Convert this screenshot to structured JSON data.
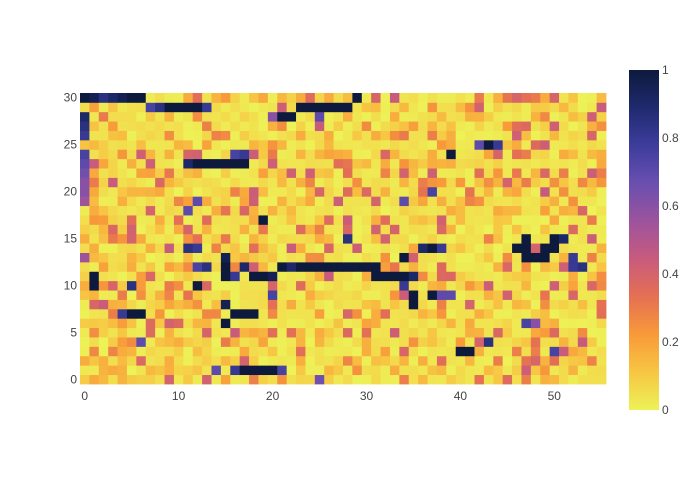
{
  "chart_data": {
    "type": "heatmap",
    "title": "",
    "xlabel": "",
    "ylabel": "",
    "x_range": [
      -0.5,
      55.5
    ],
    "y_range": [
      -0.5,
      30.5
    ],
    "n_cols": 56,
    "n_rows": 31,
    "x_ticks": [
      0,
      10,
      20,
      30,
      40,
      50
    ],
    "y_ticks": [
      0,
      5,
      10,
      15,
      20,
      25,
      30
    ],
    "colorbar": {
      "min": 0,
      "max": 1,
      "ticks": [
        0,
        0.2,
        0.4,
        0.6,
        0.8,
        1
      ],
      "tick_labels": [
        "0",
        "0.2",
        "0.4",
        "0.6",
        "0.8",
        "1"
      ],
      "colorscale": [
        "#edf257",
        "#f7c643",
        "#f89a3a",
        "#e57052",
        "#c85b7d",
        "#9c539d",
        "#6a4fb0",
        "#3d3d9c",
        "#1f2a6e",
        "#0d1a3d"
      ]
    },
    "hot_cells": [
      {
        "x": 0,
        "y": 30,
        "v": 1
      },
      {
        "x": 1,
        "y": 30,
        "v": 0.95
      },
      {
        "x": 2,
        "y": 30,
        "v": 0.85
      },
      {
        "x": 3,
        "y": 30,
        "v": 0.9
      },
      {
        "x": 4,
        "y": 30,
        "v": 0.95
      },
      {
        "x": 5,
        "y": 30,
        "v": 1
      },
      {
        "x": 6,
        "y": 30,
        "v": 1
      },
      {
        "x": 29,
        "y": 30,
        "v": 1
      },
      {
        "x": 7,
        "y": 29,
        "v": 0.75
      },
      {
        "x": 8,
        "y": 29,
        "v": 0.85
      },
      {
        "x": 9,
        "y": 29,
        "v": 1
      },
      {
        "x": 10,
        "y": 29,
        "v": 1
      },
      {
        "x": 11,
        "y": 29,
        "v": 1
      },
      {
        "x": 12,
        "y": 29,
        "v": 1
      },
      {
        "x": 13,
        "y": 29,
        "v": 0.8
      },
      {
        "x": 23,
        "y": 29,
        "v": 1
      },
      {
        "x": 24,
        "y": 29,
        "v": 1
      },
      {
        "x": 25,
        "y": 29,
        "v": 1
      },
      {
        "x": 26,
        "y": 29,
        "v": 1
      },
      {
        "x": 27,
        "y": 29,
        "v": 1
      },
      {
        "x": 28,
        "y": 29,
        "v": 1
      },
      {
        "x": 21,
        "y": 28,
        "v": 1
      },
      {
        "x": 22,
        "y": 28,
        "v": 1
      },
      {
        "x": 20,
        "y": 28,
        "v": 0.6
      },
      {
        "x": 25,
        "y": 28,
        "v": 0.7
      },
      {
        "x": 0,
        "y": 28,
        "v": 0.9
      },
      {
        "x": 0,
        "y": 27,
        "v": 0.85
      },
      {
        "x": 0,
        "y": 26,
        "v": 0.8
      },
      {
        "x": 43,
        "y": 25,
        "v": 1
      },
      {
        "x": 44,
        "y": 25,
        "v": 0.8
      },
      {
        "x": 42,
        "y": 25,
        "v": 0.7
      },
      {
        "x": 39,
        "y": 24,
        "v": 1
      },
      {
        "x": 16,
        "y": 24,
        "v": 0.75
      },
      {
        "x": 17,
        "y": 24,
        "v": 0.8
      },
      {
        "x": 11,
        "y": 23,
        "v": 0.9
      },
      {
        "x": 12,
        "y": 23,
        "v": 1
      },
      {
        "x": 13,
        "y": 23,
        "v": 1
      },
      {
        "x": 14,
        "y": 23,
        "v": 1
      },
      {
        "x": 15,
        "y": 23,
        "v": 1
      },
      {
        "x": 16,
        "y": 23,
        "v": 1
      },
      {
        "x": 17,
        "y": 23,
        "v": 1
      },
      {
        "x": 37,
        "y": 20,
        "v": 0.75
      },
      {
        "x": 34,
        "y": 19,
        "v": 0.7
      },
      {
        "x": 12,
        "y": 19,
        "v": 0.7
      },
      {
        "x": 11,
        "y": 18,
        "v": 0.7
      },
      {
        "x": 19,
        "y": 17,
        "v": 1
      },
      {
        "x": 28,
        "y": 15,
        "v": 0.85
      },
      {
        "x": 11,
        "y": 14,
        "v": 0.85
      },
      {
        "x": 12,
        "y": 14,
        "v": 0.8
      },
      {
        "x": 36,
        "y": 14,
        "v": 0.9
      },
      {
        "x": 37,
        "y": 14,
        "v": 1
      },
      {
        "x": 38,
        "y": 14,
        "v": 0.8
      },
      {
        "x": 47,
        "y": 15,
        "v": 1
      },
      {
        "x": 50,
        "y": 15,
        "v": 1
      },
      {
        "x": 51,
        "y": 15,
        "v": 0.9
      },
      {
        "x": 46,
        "y": 14,
        "v": 1
      },
      {
        "x": 47,
        "y": 14,
        "v": 1
      },
      {
        "x": 49,
        "y": 14,
        "v": 1
      },
      {
        "x": 50,
        "y": 14,
        "v": 1
      },
      {
        "x": 47,
        "y": 13,
        "v": 1
      },
      {
        "x": 48,
        "y": 13,
        "v": 1
      },
      {
        "x": 49,
        "y": 13,
        "v": 1
      },
      {
        "x": 52,
        "y": 13,
        "v": 0.8
      },
      {
        "x": 0,
        "y": 13,
        "v": 0.55
      },
      {
        "x": 15,
        "y": 13,
        "v": 0.95
      },
      {
        "x": 34,
        "y": 13,
        "v": 1
      },
      {
        "x": 12,
        "y": 12,
        "v": 0.75
      },
      {
        "x": 13,
        "y": 12,
        "v": 0.85
      },
      {
        "x": 15,
        "y": 12,
        "v": 1
      },
      {
        "x": 17,
        "y": 12,
        "v": 0.9
      },
      {
        "x": 21,
        "y": 12,
        "v": 1
      },
      {
        "x": 22,
        "y": 12,
        "v": 0.9
      },
      {
        "x": 23,
        "y": 12,
        "v": 1
      },
      {
        "x": 24,
        "y": 12,
        "v": 1
      },
      {
        "x": 25,
        "y": 12,
        "v": 1
      },
      {
        "x": 26,
        "y": 12,
        "v": 1
      },
      {
        "x": 27,
        "y": 12,
        "v": 1
      },
      {
        "x": 28,
        "y": 12,
        "v": 1
      },
      {
        "x": 29,
        "y": 12,
        "v": 1
      },
      {
        "x": 30,
        "y": 12,
        "v": 1
      },
      {
        "x": 31,
        "y": 12,
        "v": 1
      },
      {
        "x": 52,
        "y": 12,
        "v": 0.8
      },
      {
        "x": 53,
        "y": 12,
        "v": 0.85
      },
      {
        "x": 15,
        "y": 11,
        "v": 1
      },
      {
        "x": 16,
        "y": 11,
        "v": 0.8
      },
      {
        "x": 18,
        "y": 11,
        "v": 1
      },
      {
        "x": 19,
        "y": 11,
        "v": 1
      },
      {
        "x": 20,
        "y": 11,
        "v": 0.95
      },
      {
        "x": 31,
        "y": 11,
        "v": 1
      },
      {
        "x": 32,
        "y": 11,
        "v": 1
      },
      {
        "x": 33,
        "y": 11,
        "v": 1
      },
      {
        "x": 34,
        "y": 11,
        "v": 1
      },
      {
        "x": 35,
        "y": 11,
        "v": 0.9
      },
      {
        "x": 1,
        "y": 11,
        "v": 1
      },
      {
        "x": 1,
        "y": 10,
        "v": 1
      },
      {
        "x": 5,
        "y": 10,
        "v": 0.85
      },
      {
        "x": 12,
        "y": 10,
        "v": 1
      },
      {
        "x": 34,
        "y": 10,
        "v": 0.8
      },
      {
        "x": 20,
        "y": 9,
        "v": 0.75
      },
      {
        "x": 35,
        "y": 9,
        "v": 1
      },
      {
        "x": 37,
        "y": 9,
        "v": 1
      },
      {
        "x": 38,
        "y": 9,
        "v": 0.7
      },
      {
        "x": 39,
        "y": 9,
        "v": 0.7
      },
      {
        "x": 35,
        "y": 8,
        "v": 1
      },
      {
        "x": 15,
        "y": 8,
        "v": 0.95
      },
      {
        "x": 5,
        "y": 7,
        "v": 1
      },
      {
        "x": 6,
        "y": 7,
        "v": 1
      },
      {
        "x": 4,
        "y": 7,
        "v": 0.8
      },
      {
        "x": 16,
        "y": 7,
        "v": 1
      },
      {
        "x": 17,
        "y": 7,
        "v": 1
      },
      {
        "x": 18,
        "y": 7,
        "v": 1
      },
      {
        "x": 15,
        "y": 6,
        "v": 1
      },
      {
        "x": 47,
        "y": 6,
        "v": 0.75
      },
      {
        "x": 48,
        "y": 6,
        "v": 0.6
      },
      {
        "x": 43,
        "y": 4,
        "v": 0.85
      },
      {
        "x": 6,
        "y": 4,
        "v": 0.7
      },
      {
        "x": 40,
        "y": 3,
        "v": 1
      },
      {
        "x": 41,
        "y": 3,
        "v": 1
      },
      {
        "x": 50,
        "y": 3,
        "v": 0.75
      },
      {
        "x": 16,
        "y": 1,
        "v": 0.8
      },
      {
        "x": 17,
        "y": 1,
        "v": 1
      },
      {
        "x": 18,
        "y": 1,
        "v": 1
      },
      {
        "x": 19,
        "y": 1,
        "v": 1
      },
      {
        "x": 20,
        "y": 1,
        "v": 1
      },
      {
        "x": 21,
        "y": 1,
        "v": 0.75
      },
      {
        "x": 14,
        "y": 1,
        "v": 0.7
      },
      {
        "x": 25,
        "y": 0,
        "v": 0.65
      },
      {
        "x": 0,
        "y": 24,
        "v": 0.75
      },
      {
        "x": 0,
        "y": 23,
        "v": 0.7
      },
      {
        "x": 0,
        "y": 22,
        "v": 0.65
      },
      {
        "x": 0,
        "y": 21,
        "v": 0.6
      },
      {
        "x": 0,
        "y": 20,
        "v": 0.6
      },
      {
        "x": 0,
        "y": 19,
        "v": 0.55
      }
    ],
    "background_value_range": [
      0,
      0.45
    ]
  }
}
